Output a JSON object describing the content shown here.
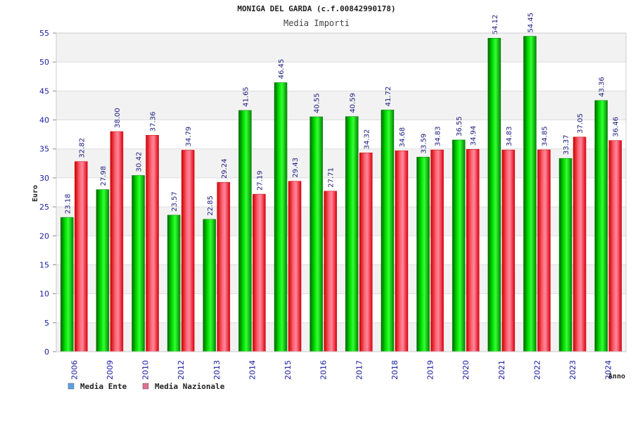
{
  "chart_data": {
    "type": "bar",
    "title": "MONIGA DEL GARDA (c.f.00842990178)",
    "subtitle": "Media Importi",
    "xlabel": "Anno",
    "ylabel": "Euro",
    "ylim": [
      0,
      55
    ],
    "yticks": [
      0,
      5,
      10,
      15,
      20,
      25,
      30,
      35,
      40,
      45,
      50,
      55
    ],
    "grid": true,
    "legend_position": "bottom-left",
    "categories": [
      "2006",
      "2009",
      "2010",
      "2012",
      "2013",
      "2014",
      "2015",
      "2016",
      "2017",
      "2018",
      "2019",
      "2020",
      "2021",
      "2022",
      "2023",
      "2024"
    ],
    "series": [
      {
        "name": "Media Ente",
        "color": "#00cc00",
        "legend_color": "#5aa0e6",
        "values": [
          23.18,
          27.98,
          30.42,
          23.57,
          22.85,
          41.65,
          46.45,
          40.55,
          40.59,
          41.72,
          33.59,
          36.55,
          54.12,
          54.45,
          33.37,
          43.36
        ],
        "labels": [
          "23.18",
          "27.98",
          "30.42",
          "23.57",
          "22.85",
          "41.65",
          "46.45",
          "40.55",
          "40.59",
          "41.72",
          "33.59",
          "36.55",
          "54.12",
          "54.45",
          "33.37",
          "43.36"
        ]
      },
      {
        "name": "Media Nazionale",
        "color": "#ee1111",
        "legend_color": "#e07090",
        "values": [
          32.82,
          38.0,
          37.36,
          34.79,
          29.24,
          27.19,
          29.43,
          27.71,
          34.32,
          34.68,
          34.83,
          34.94,
          34.83,
          34.85,
          37.05,
          36.46
        ],
        "labels": [
          "32.82",
          "38.00",
          "37.36",
          "34.79",
          "29.24",
          "27.19",
          "29.43",
          "27.71",
          "34.32",
          "34.68",
          "34.83",
          "34.94",
          "34.83",
          "34.85",
          "37.05",
          "36.46"
        ]
      }
    ]
  }
}
